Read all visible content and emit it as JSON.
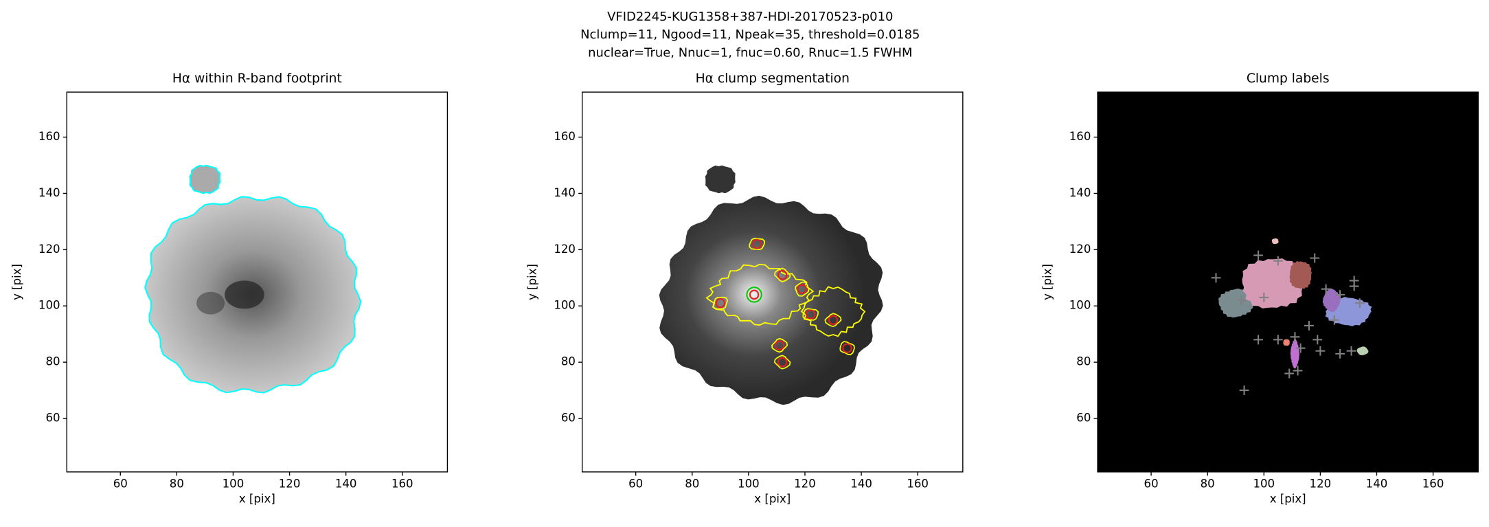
{
  "suptitle": [
    "VFID2245-KUG1358+387-HDI-20170523-p010",
    "Nclump=11, Ngood=11, Npeak=35, threshold=0.0185",
    "nuclear=True, Nnuc=1, fnuc=0.60, Rnuc=1.5 FWHM"
  ],
  "chart_data": [
    {
      "type": "image",
      "title": "Hα within R-band footprint",
      "xlabel": "x [pix]",
      "ylabel": "y [pix]",
      "xlim": [
        41,
        176
      ],
      "ylim": [
        41,
        176
      ],
      "xticks": [
        60,
        80,
        100,
        120,
        140,
        160
      ],
      "yticks": [
        60,
        80,
        100,
        120,
        140,
        160
      ],
      "background": "#ffffff",
      "overlay_color": "#00ffff"
    },
    {
      "type": "image",
      "title": "Hα clump segmentation",
      "xlabel": "x [pix]",
      "ylabel": "y [pix]",
      "xlim": [
        41,
        176
      ],
      "ylim": [
        41,
        176
      ],
      "xticks": [
        60,
        80,
        100,
        120,
        140,
        160
      ],
      "yticks": [
        60,
        80,
        100,
        120,
        140,
        160
      ],
      "background": "#ffffff",
      "overlay_color": "#ffff00"
    },
    {
      "type": "image",
      "title": "Clump labels",
      "xlabel": "x [pix]",
      "ylabel": "y [pix]",
      "xlim": [
        41,
        176
      ],
      "ylim": [
        41,
        176
      ],
      "xticks": [
        60,
        80,
        100,
        120,
        140,
        160
      ],
      "yticks": [
        60,
        80,
        100,
        120,
        140,
        160
      ],
      "background": "#000000",
      "overlay_color": "#808080"
    }
  ]
}
